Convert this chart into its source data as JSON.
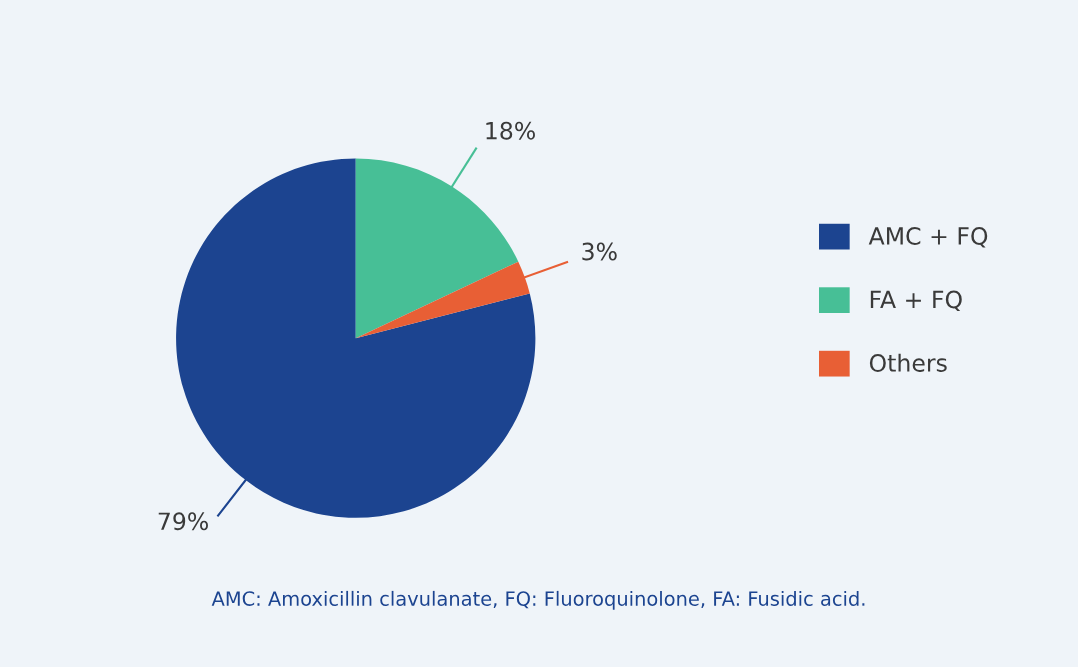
{
  "chart_data": {
    "type": "pie",
    "categories": [
      "AMC + FQ",
      "FA + FQ",
      "Others"
    ],
    "values": [
      79,
      18,
      3
    ],
    "colors": [
      "#1c4490",
      "#47bf96",
      "#e85f35"
    ],
    "value_labels": [
      "79%",
      "18%",
      "3%"
    ],
    "legend": "right",
    "annotations": [
      "AMC: Amoxicillin clavulanate, FQ: Fluoroquinolone, FA: Fusidic acid."
    ]
  }
}
